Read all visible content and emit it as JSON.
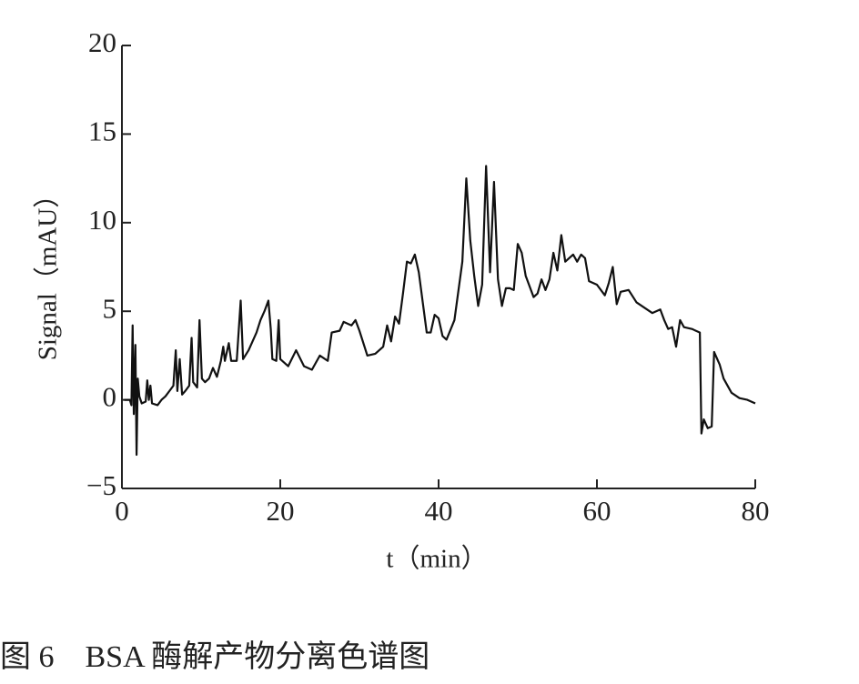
{
  "chart_data": {
    "type": "line",
    "x_label": "t（min）",
    "y_label": "Signal（mAU）",
    "caption": "图 6　BSA 酶解产物分离色谱图",
    "color": "#111111",
    "xlim": [
      0,
      80
    ],
    "xticks": [
      0,
      20,
      40,
      60,
      80
    ],
    "ylim": [
      -5,
      20
    ],
    "yticks": [
      {
        "value": -5,
        "label": "−5"
      },
      0,
      5,
      10,
      15,
      20
    ],
    "x": [
      0.3,
      1.0,
      1.2,
      1.35,
      1.5,
      1.7,
      1.85,
      2.0,
      2.2,
      2.5,
      3.0,
      3.2,
      3.4,
      3.6,
      3.8,
      4.5,
      5.0,
      5.5,
      6.0,
      6.5,
      6.8,
      7.0,
      7.3,
      7.6,
      8.0,
      8.5,
      8.8,
      9.0,
      9.5,
      9.8,
      10.1,
      10.5,
      11.0,
      11.5,
      12.0,
      12.5,
      12.8,
      13.0,
      13.5,
      13.8,
      14.5,
      15.0,
      15.3,
      16.0,
      17.0,
      17.5,
      18.0,
      18.5,
      18.8,
      19.0,
      19.5,
      19.8,
      20.0,
      21,
      22,
      23,
      24,
      25,
      26,
      26.5,
      27.5,
      28,
      29,
      29.5,
      30,
      31,
      32,
      33,
      33.5,
      34,
      34.5,
      35,
      35.5,
      36,
      36.5,
      37,
      37.5,
      38,
      38.5,
      39,
      39.5,
      40,
      40.5,
      41,
      42,
      43,
      43.5,
      44,
      44.5,
      45,
      45.5,
      46,
      46.5,
      47,
      47.5,
      48,
      48.5,
      49,
      49.5,
      50,
      50.5,
      51,
      52,
      52.5,
      53,
      53.5,
      54,
      54.5,
      55,
      55.5,
      56,
      57,
      57.5,
      58,
      58.5,
      59,
      60,
      61,
      61.5,
      62,
      62.5,
      63,
      64,
      65,
      66,
      67,
      68,
      68.5,
      69,
      69.5,
      70,
      70.5,
      71,
      72,
      73,
      73.2,
      73.5,
      74,
      74.5,
      74.8,
      75.5,
      76,
      77,
      78,
      79,
      80
    ],
    "values": [
      0,
      0,
      -0.3,
      4.2,
      -0.8,
      3.1,
      -3.1,
      1.2,
      0.2,
      -0.2,
      -0.1,
      1.1,
      0,
      0.8,
      -0.2,
      -0.3,
      0,
      0.2,
      0.5,
      0.8,
      2.8,
      0.5,
      2.3,
      0.3,
      0.5,
      0.8,
      3.5,
      1.0,
      0.7,
      4.5,
      1.2,
      1.0,
      1.2,
      1.8,
      1.3,
      2.2,
      3.0,
      2.2,
      3.2,
      2.2,
      2.2,
      5.6,
      2.3,
      2.8,
      3.8,
      4.5,
      5.0,
      5.6,
      4.0,
      2.3,
      2.2,
      4.5,
      2.3,
      1.9,
      2.8,
      1.9,
      1.7,
      2.5,
      2.2,
      3.8,
      3.9,
      4.4,
      4.2,
      4.5,
      3.9,
      2.5,
      2.6,
      3.0,
      4.2,
      3.3,
      4.7,
      4.3,
      6.0,
      7.8,
      7.7,
      8.2,
      7.2,
      5.5,
      3.8,
      3.8,
      4.8,
      4.6,
      3.6,
      3.4,
      4.5,
      7.8,
      12.5,
      9.0,
      7.0,
      5.3,
      6.5,
      13.2,
      7.2,
      12.3,
      6.8,
      5.3,
      6.3,
      6.3,
      6.2,
      8.8,
      8.3,
      7.0,
      5.8,
      6.0,
      6.8,
      6.2,
      6.8,
      8.3,
      7.3,
      9.3,
      7.8,
      8.2,
      7.8,
      8.2,
      8.0,
      6.7,
      6.5,
      5.9,
      6.6,
      7.5,
      5.4,
      6.1,
      6.2,
      5.5,
      5.2,
      4.9,
      5.1,
      4.5,
      4.0,
      4.1,
      3.0,
      4.5,
      4.1,
      4.0,
      3.8,
      -1.9,
      -1.1,
      -1.6,
      -1.5,
      2.7,
      2.0,
      1.2,
      0.4,
      0.1,
      0,
      -0.2
    ]
  }
}
